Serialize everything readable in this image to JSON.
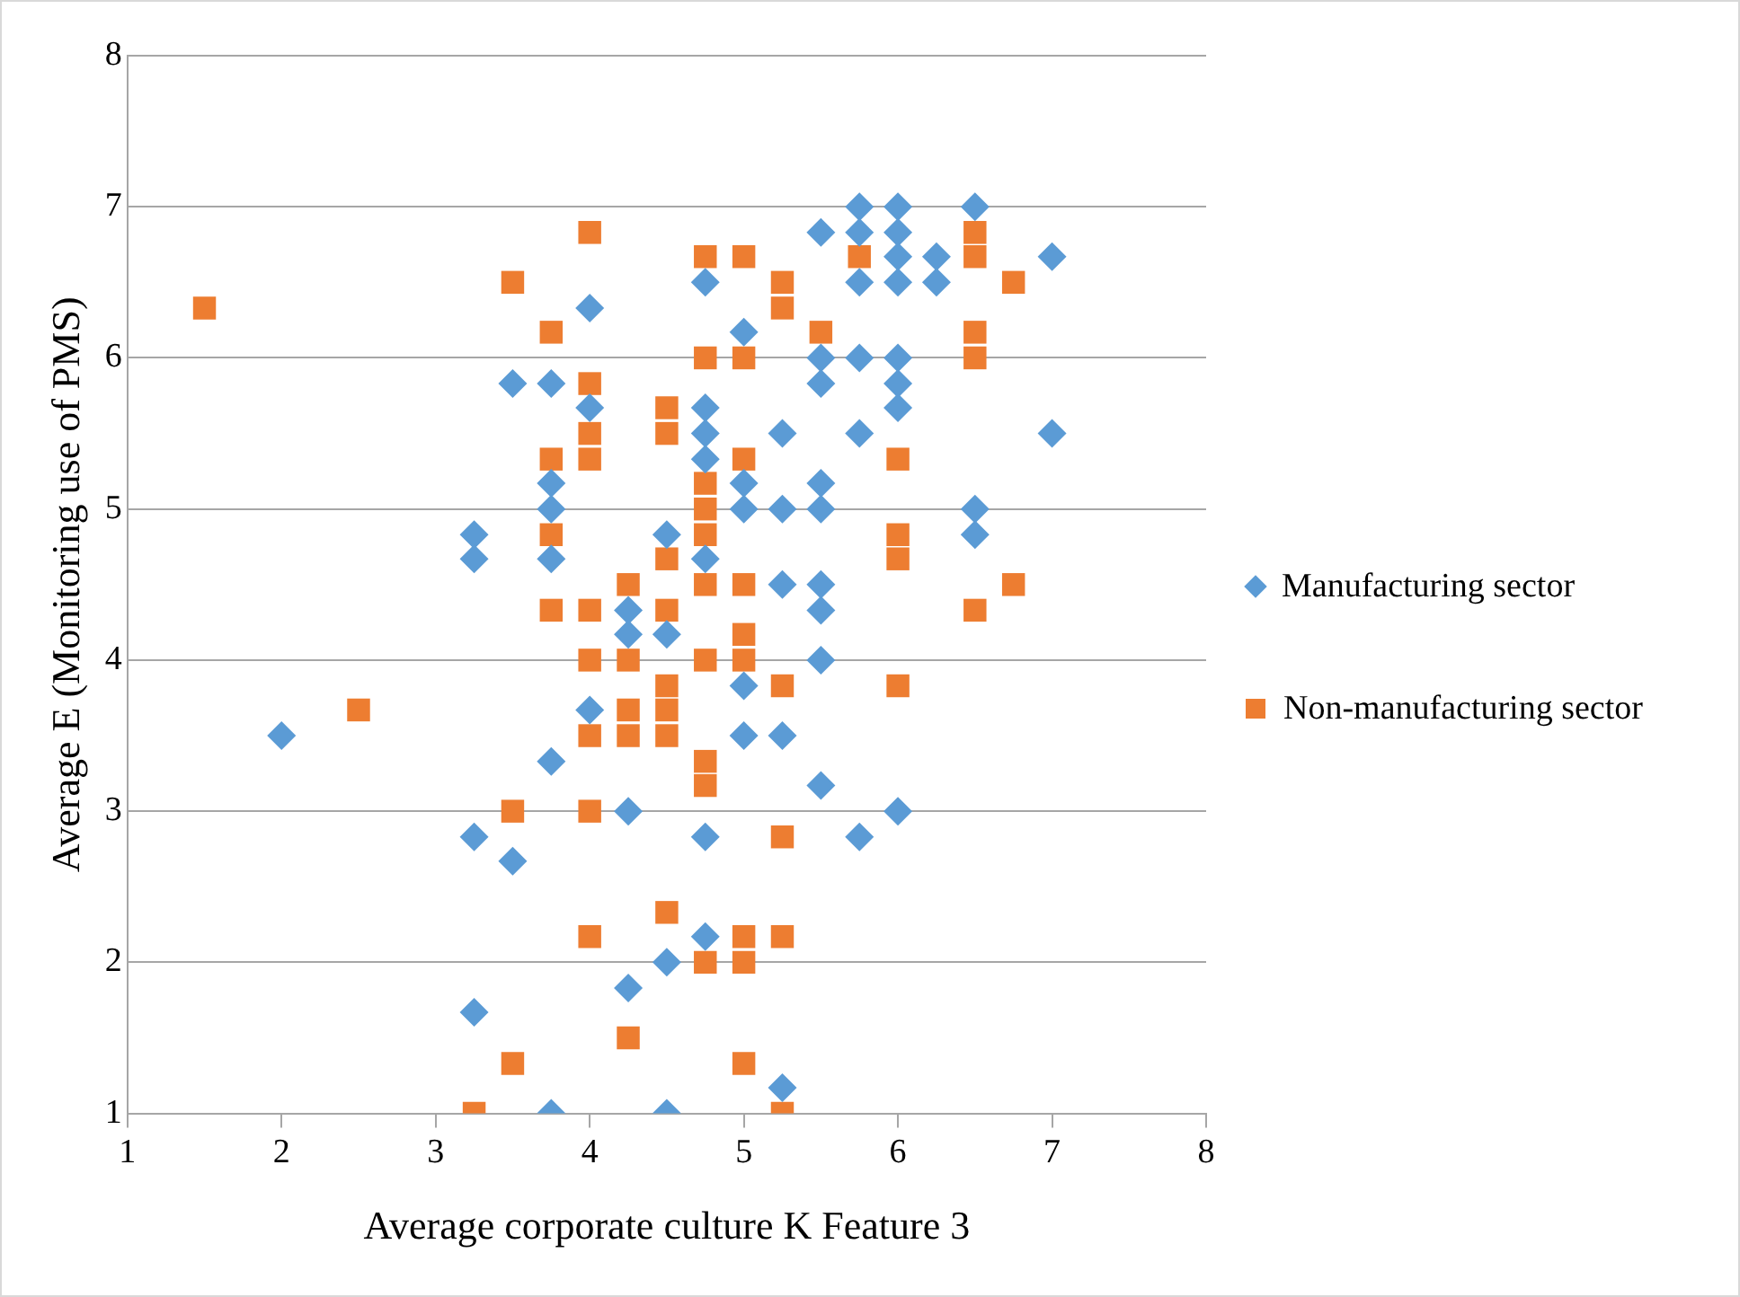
{
  "chart_data": {
    "type": "scatter",
    "xlabel": "Average corporate culture K Feature 3",
    "ylabel": "Average E (Monitoring use of PMS)",
    "xlim": [
      1,
      8
    ],
    "xticks": [
      1,
      2,
      3,
      4,
      5,
      6,
      7,
      8
    ],
    "ylim": [
      1,
      8
    ],
    "yticks": [
      1,
      2,
      3,
      4,
      5,
      6,
      7,
      8
    ],
    "grid": "y",
    "legend": "right",
    "series": [
      {
        "name": "Manufacturing sector",
        "color": "#5b9bd5",
        "marker": "diamond",
        "x": [
          2,
          3.25,
          3.25,
          3.25,
          3.25,
          3.5,
          3.5,
          3.75,
          3.75,
          3.75,
          3.75,
          3.75,
          3.75,
          4,
          4,
          4,
          4.25,
          4.25,
          4.25,
          4.25,
          4.5,
          4.5,
          4.5,
          4.5,
          4.75,
          4.75,
          4.75,
          4.75,
          4.75,
          4.75,
          4.75,
          5,
          5,
          5,
          5,
          5,
          5.25,
          5.25,
          5.25,
          5.25,
          5.25,
          5.5,
          5.5,
          5.5,
          5.5,
          5.5,
          5.5,
          5.5,
          5.5,
          5.5,
          5.75,
          5.75,
          5.75,
          5.75,
          5.75,
          5.75,
          6,
          6,
          6,
          6,
          6,
          6,
          6,
          6,
          6.25,
          6.25,
          6.5,
          6.5,
          6.5,
          7,
          7
        ],
        "values": [
          3.5,
          4.83,
          4.67,
          2.83,
          1.67,
          5.83,
          2.67,
          5.83,
          5.17,
          5,
          4.67,
          3.33,
          1,
          6.33,
          5.67,
          3.67,
          4.33,
          4.17,
          3,
          1.83,
          4.83,
          4.17,
          2,
          1,
          6.5,
          5.67,
          5.5,
          5.33,
          4.67,
          2.83,
          2.17,
          6.17,
          5.17,
          5,
          3.83,
          3.5,
          5.5,
          5,
          4.5,
          3.5,
          1.17,
          6.83,
          6,
          5.83,
          5.17,
          5,
          4.5,
          4.33,
          4,
          3.17,
          7,
          6.83,
          6.5,
          6,
          5.5,
          2.83,
          7,
          6.83,
          6.67,
          6.5,
          6,
          5.83,
          5.67,
          3,
          6.67,
          6.5,
          7,
          5,
          4.83,
          6.67,
          5.5
        ]
      },
      {
        "name": "Non-manufacturing sector",
        "color": "#ed7d31",
        "marker": "square",
        "x": [
          1.5,
          2.5,
          3.25,
          3.5,
          3.5,
          3.5,
          3.75,
          3.75,
          3.75,
          3.75,
          4,
          4,
          4,
          4,
          4,
          4,
          4,
          4,
          4,
          4.25,
          4.25,
          4.25,
          4.25,
          4.25,
          4.5,
          4.5,
          4.5,
          4.5,
          4.5,
          4.5,
          4.5,
          4.5,
          4.75,
          4.75,
          4.75,
          4.75,
          4.75,
          4.75,
          4.75,
          4.75,
          4.75,
          4.75,
          5,
          5,
          5,
          5,
          5,
          5,
          5,
          5,
          5,
          5.25,
          5.25,
          5.25,
          5.25,
          5.25,
          5.25,
          5.5,
          5.75,
          6,
          6,
          6,
          6,
          6.5,
          6.5,
          6.5,
          6.5,
          6.5,
          6.75,
          6.75
        ],
        "values": [
          6.33,
          3.67,
          1,
          6.5,
          3,
          1.33,
          6.17,
          5.33,
          4.83,
          4.33,
          6.83,
          5.83,
          5.5,
          5.33,
          4.33,
          4,
          3.5,
          3,
          2.17,
          4.5,
          4,
          3.67,
          3.5,
          1.5,
          5.67,
          5.5,
          4.67,
          4.33,
          3.83,
          3.67,
          3.5,
          2.33,
          6.67,
          6,
          5.17,
          5,
          4.83,
          4.5,
          4,
          3.33,
          3.17,
          2,
          6.67,
          6,
          5.33,
          4.5,
          4.17,
          4,
          2.17,
          2,
          1.33,
          6.5,
          6.33,
          3.83,
          2.83,
          2.17,
          1,
          6.17,
          6.67,
          5.33,
          4.83,
          4.67,
          3.83,
          6.83,
          6.67,
          6.17,
          6,
          4.33,
          6.5,
          4.5
        ]
      }
    ]
  }
}
